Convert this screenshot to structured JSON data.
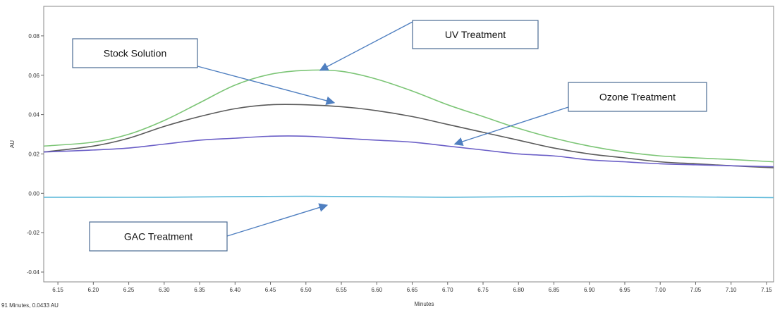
{
  "chart_data": {
    "type": "line",
    "title": "",
    "xlabel": "Minutes",
    "ylabel": "AU",
    "xlim": [
      6.13,
      7.16
    ],
    "ylim": [
      -0.045,
      0.095
    ],
    "x_ticks": [
      "6.15",
      "6.20",
      "6.25",
      "6.30",
      "6.35",
      "6.40",
      "6.45",
      "6.50",
      "6.55",
      "6.60",
      "6.65",
      "6.70",
      "6.75",
      "6.80",
      "6.85",
      "6.90",
      "6.95",
      "7.00",
      "7.05",
      "7.10",
      "7.15"
    ],
    "y_ticks": [
      "0.08",
      "0.06",
      "0.04",
      "0.02",
      "0.00",
      "-0.02",
      "-0.04"
    ],
    "grid": false,
    "series": [
      {
        "color": "#7cc576",
        "x": [
          6.13,
          6.2,
          6.25,
          6.3,
          6.35,
          6.4,
          6.45,
          6.5,
          6.55,
          6.6,
          6.65,
          6.7,
          6.75,
          6.8,
          6.85,
          6.9,
          6.95,
          7.0,
          7.05,
          7.1,
          7.16
        ],
        "values": [
          0.024,
          0.026,
          0.03,
          0.037,
          0.046,
          0.055,
          0.0605,
          0.0625,
          0.062,
          0.058,
          0.052,
          0.045,
          0.039,
          0.033,
          0.028,
          0.024,
          0.021,
          0.019,
          0.018,
          0.0172,
          0.016
        ]
      },
      {
        "color": "#5a5a5a",
        "x": [
          6.13,
          6.2,
          6.25,
          6.3,
          6.35,
          6.4,
          6.45,
          6.5,
          6.55,
          6.6,
          6.65,
          6.7,
          6.75,
          6.8,
          6.85,
          6.9,
          6.95,
          7.0,
          7.05,
          7.1,
          7.16
        ],
        "values": [
          0.021,
          0.024,
          0.028,
          0.034,
          0.039,
          0.043,
          0.045,
          0.045,
          0.044,
          0.042,
          0.039,
          0.035,
          0.031,
          0.027,
          0.023,
          0.02,
          0.018,
          0.016,
          0.015,
          0.014,
          0.013
        ]
      },
      {
        "color": "#6b5fc7",
        "x": [
          6.13,
          6.2,
          6.25,
          6.3,
          6.35,
          6.4,
          6.45,
          6.5,
          6.55,
          6.6,
          6.65,
          6.7,
          6.75,
          6.8,
          6.85,
          6.9,
          6.95,
          7.0,
          7.05,
          7.1,
          7.16
        ],
        "values": [
          0.021,
          0.022,
          0.023,
          0.025,
          0.027,
          0.028,
          0.029,
          0.029,
          0.028,
          0.027,
          0.026,
          0.024,
          0.022,
          0.02,
          0.019,
          0.017,
          0.016,
          0.015,
          0.0145,
          0.014,
          0.0135
        ]
      },
      {
        "color": "#5bb8d9",
        "x": [
          6.13,
          6.3,
          6.5,
          6.7,
          6.9,
          7.1,
          7.16
        ],
        "values": [
          -0.002,
          -0.002,
          -0.0015,
          -0.002,
          -0.0015,
          -0.002,
          -0.0022
        ]
      }
    ],
    "annotations": [
      {
        "text": "UV Treatment",
        "target": [
          6.52,
          0.0625
        ]
      },
      {
        "text": "Stock Solution",
        "target": [
          6.54,
          0.046
        ]
      },
      {
        "text": "Ozone Treatment",
        "target": [
          6.71,
          0.025
        ]
      },
      {
        "text": "GAC Treatment",
        "target": [
          6.53,
          -0.006
        ]
      }
    ]
  },
  "status_readout": "91 Minutes, 0.0433 AU"
}
